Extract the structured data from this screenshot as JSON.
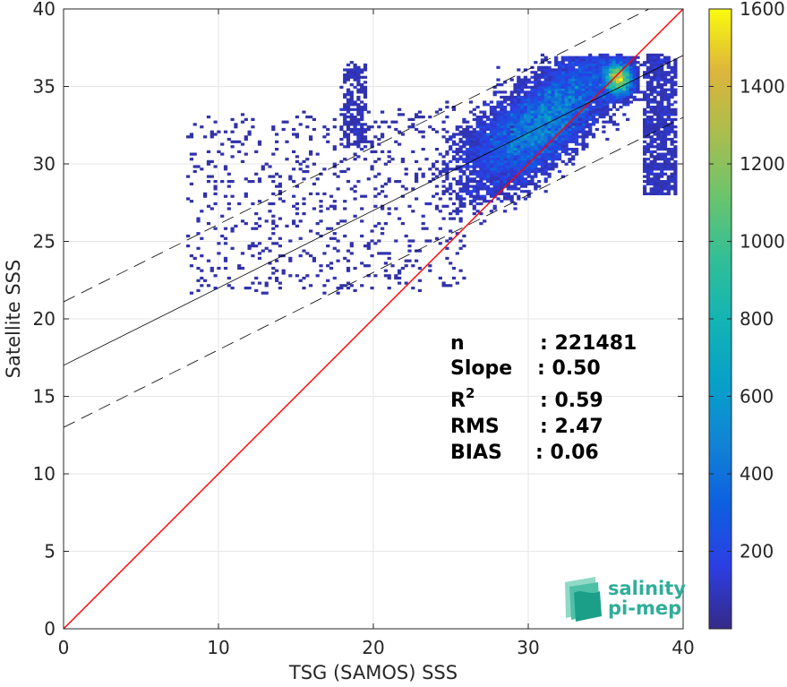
{
  "chart_data": {
    "type": "heatmap",
    "subtype": "2D density scatter with regression lines",
    "xlabel": "TSG (SAMOS) SSS",
    "ylabel": "Satellite SSS",
    "xlim": [
      0,
      40
    ],
    "ylim": [
      0,
      40
    ],
    "xticks": [
      "0",
      "10",
      "20",
      "30",
      "40"
    ],
    "yticks": [
      "0",
      "5",
      "10",
      "15",
      "20",
      "25",
      "30",
      "35",
      "40"
    ],
    "grid": true,
    "colormap": "parula",
    "colorbar": {
      "range": [
        0,
        1600
      ],
      "ticks": [
        "200",
        "400",
        "600",
        "800",
        "1000",
        "1200",
        "1400",
        "1600"
      ]
    },
    "identity_line": {
      "x": [
        0,
        40
      ],
      "y": [
        0,
        40
      ],
      "color": "#ff0000"
    },
    "regression_line": {
      "x": [
        0,
        40
      ],
      "y": [
        17,
        37
      ],
      "color": "#000000"
    },
    "confidence_lines": [
      {
        "x": [
          0,
          40
        ],
        "y": [
          21.1,
          41.1
        ],
        "style": "dashed"
      },
      {
        "x": [
          0,
          40
        ],
        "y": [
          13.0,
          33.0
        ],
        "style": "dashed"
      }
    ],
    "density_cloud": {
      "x_range": [
        5,
        39.5
      ],
      "y_range": [
        21.5,
        37
      ],
      "peak": {
        "x": 36.5,
        "y": 36.2,
        "count": 1600
      }
    },
    "stats": [
      {
        "label": "n",
        "value": ": 221481"
      },
      {
        "label": "Slope",
        "value": ": 0.50"
      },
      {
        "label": "R",
        "sup": "2",
        "value": ": 0.59"
      },
      {
        "label": "RMS",
        "value": ": 2.47"
      },
      {
        "label": "BIAS",
        "value": ": 0.06"
      }
    ]
  },
  "logo": {
    "line1": "salinity",
    "line2": "pi-mep"
  }
}
